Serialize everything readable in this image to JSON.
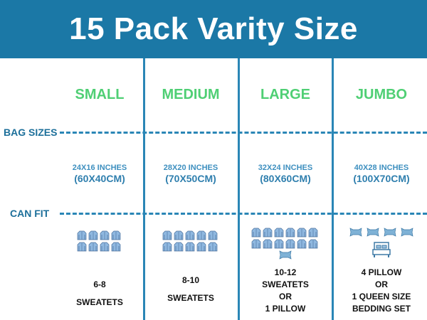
{
  "title": "15 Pack Varity Size",
  "row_labels": {
    "bag_sizes": "BAG SIZES",
    "can_fit": "CAN FIT"
  },
  "colors": {
    "banner": "#1b78a6",
    "size_name": "#4fcf74",
    "lines": "#2a86b6",
    "icons": "#8fb8e0"
  },
  "columns": [
    {
      "name": "SMALL",
      "inches": "24X16 INCHES",
      "cm": "(60X40CM)",
      "sweaters": 8,
      "sweaters_per_row": 4,
      "pillows": 0,
      "bed": false,
      "fit": [
        "6-8",
        "SWEATETS"
      ]
    },
    {
      "name": "MEDIUM",
      "inches": "28X20 INCHES",
      "cm": "(70X50CM)",
      "sweaters": 10,
      "sweaters_per_row": 5,
      "pillows": 0,
      "bed": false,
      "fit": [
        "8-10",
        "SWEATETS"
      ]
    },
    {
      "name": "LARGE",
      "inches": "32X24 INCHES",
      "cm": "(80X60CM)",
      "sweaters": 12,
      "sweaters_per_row": 6,
      "pillows": 1,
      "bed": false,
      "fit": [
        "10-12",
        "SWEATETS",
        "OR",
        "1 PILLOW"
      ]
    },
    {
      "name": "JUMBO",
      "inches": "40X28 INCHES",
      "cm": "(100X70CM)",
      "sweaters": 0,
      "sweaters_per_row": 0,
      "pillows": 4,
      "bed": true,
      "fit": [
        "4 PILLOW",
        "OR",
        "1 QUEEN SIZE",
        "BEDDING SET"
      ]
    }
  ]
}
